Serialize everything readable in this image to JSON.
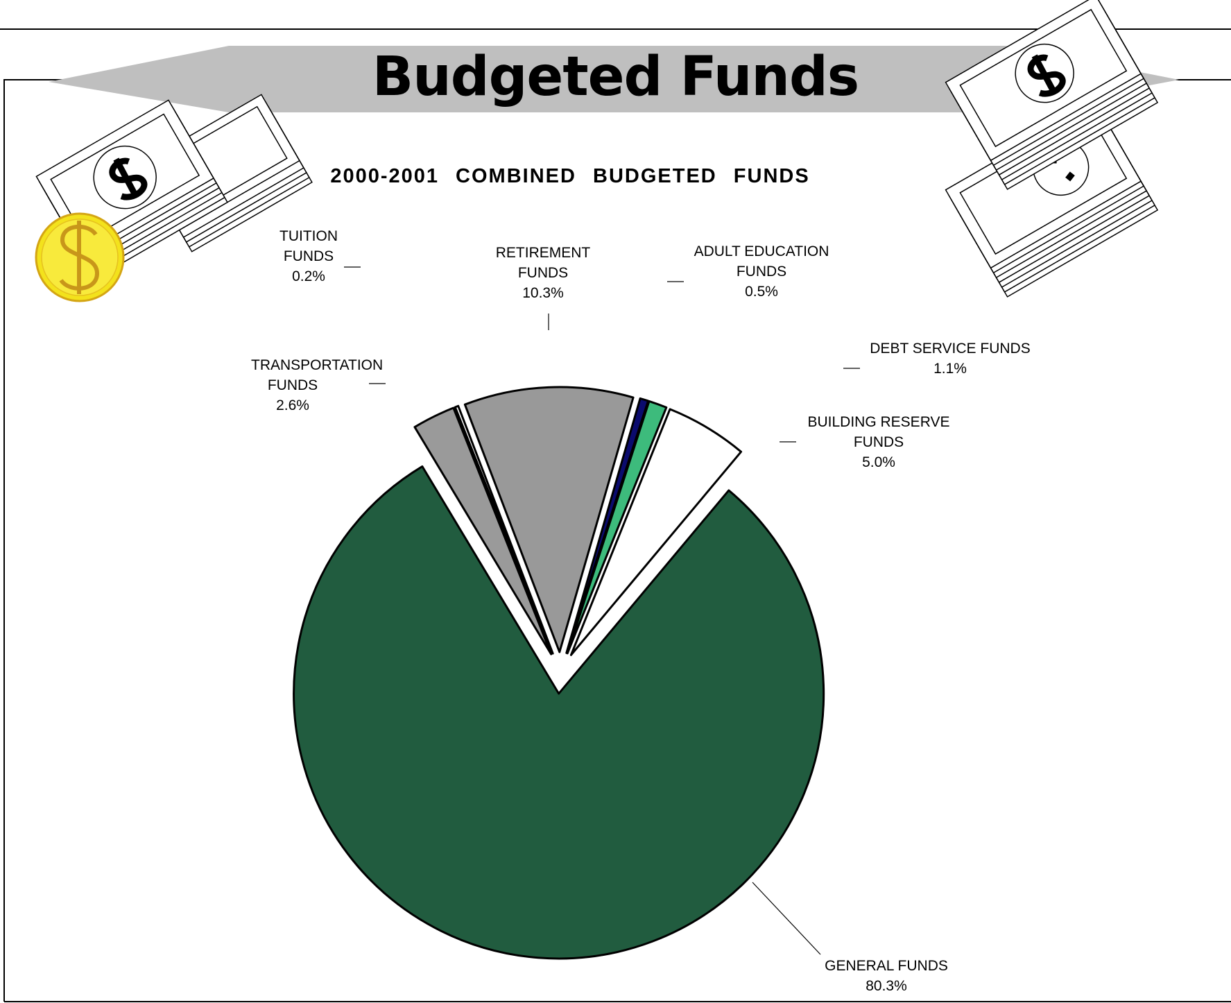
{
  "chart_data": {
    "type": "pie",
    "banner": "Budgeted Funds",
    "title": "2000-2001 COMBINED BUDGETED FUNDS",
    "categories": [
      "TRANSPORTATION FUNDS",
      "TUITION FUNDS",
      "RETIREMENT FUNDS",
      "ADULT EDUCATION FUNDS",
      "DEBT SERVICE FUNDS",
      "BUILDING RESERVE FUNDS",
      "GENERAL FUNDS"
    ],
    "values": [
      2.6,
      0.2,
      10.3,
      0.5,
      1.1,
      5.0,
      80.3
    ],
    "value_labels": [
      "2.6%",
      "0.2%",
      "10.3%",
      "0.5%",
      "1.1%",
      "5.0%",
      "80.3%"
    ],
    "colors": [
      "#9a9a9a",
      "#ffffff",
      "#999999",
      "#0b0b6e",
      "#3dbb7c",
      "#ffffff",
      "#215c3f"
    ]
  }
}
